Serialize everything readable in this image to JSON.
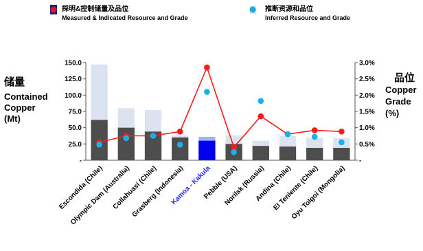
{
  "legend": {
    "measured": {
      "zh": "探明&控制储量及品位",
      "en": "Measured & Indicated Resource and Grade",
      "color": "#e8141b"
    },
    "inferred": {
      "zh": "推断资源和品位",
      "en": "Inferred Resource and Grade",
      "color": "#19a9e6"
    }
  },
  "y_left_title": {
    "zh": "储量",
    "en1": "Contained",
    "en2": "Copper",
    "en3": "(Mt)"
  },
  "y_right_title": {
    "zh": "品位",
    "en1": "Copper",
    "en2": "Grade",
    "en3": "(%)"
  },
  "chart_data": {
    "type": "bar",
    "categories": [
      "Escondida (Chile)",
      "Olympic Dam (Australia)",
      "Collahuasi (Chile)",
      "Grasberg (Indonesia)",
      "Kamoa - Kakula",
      "Pebble (USA)",
      "Norilsk (Russia)",
      "Andina (Chile)",
      "El Teniente (Chile)",
      "Oyu Tolgoi (Mongolia)"
    ],
    "highlight_category": "Kamoa - Kakula",
    "series": [
      {
        "name": "Measured & Indicated Resource and Grade",
        "kind": "bar",
        "axis": "left",
        "values": [
          62,
          50,
          44,
          35,
          30,
          25,
          22,
          21,
          19,
          19
        ]
      },
      {
        "name": "Inferred Resource and Grade",
        "kind": "bar",
        "axis": "left",
        "values": [
          147,
          80,
          77,
          38,
          36,
          38,
          30,
          37,
          34,
          34
        ]
      },
      {
        "name": "Measured & Indicated Resource and Grade",
        "kind": "line",
        "axis": "right",
        "values": [
          0.55,
          0.75,
          0.75,
          0.88,
          2.85,
          0.4,
          1.35,
          0.8,
          0.92,
          0.88
        ]
      },
      {
        "name": "Inferred Resource and Grade",
        "kind": "scatter",
        "axis": "right",
        "values": [
          0.48,
          0.68,
          0.75,
          0.48,
          2.1,
          0.25,
          1.82,
          0.8,
          0.72,
          0.55
        ]
      }
    ],
    "y_left": {
      "min": 0,
      "max": 150,
      "ticks": [
        0,
        25,
        50,
        75,
        100,
        125,
        150
      ],
      "tick_labels": [
        "-",
        "25.0",
        "50.0",
        "75.0",
        "100.0",
        "125.0",
        "150.0"
      ]
    },
    "y_right": {
      "min": 0,
      "max": 3,
      "ticks": [
        0,
        0.5,
        1,
        1.5,
        2,
        2.5,
        3
      ],
      "tick_labels": [
        "-",
        "0.5%",
        "1.0%",
        "1.5%",
        "2.0%",
        "2.5%",
        "3.0%"
      ]
    },
    "colors": {
      "measured_bar": "#4d4d4d",
      "inferred_bar": "#dce3f0",
      "highlight_measured": "#0000ee",
      "highlight_inferred": "#9fb3ff",
      "line": "#ff1a1a",
      "scatter": "#19b0ee",
      "highlight_text": "#1f1fff"
    },
    "grid": false,
    "legend_position": "top"
  }
}
